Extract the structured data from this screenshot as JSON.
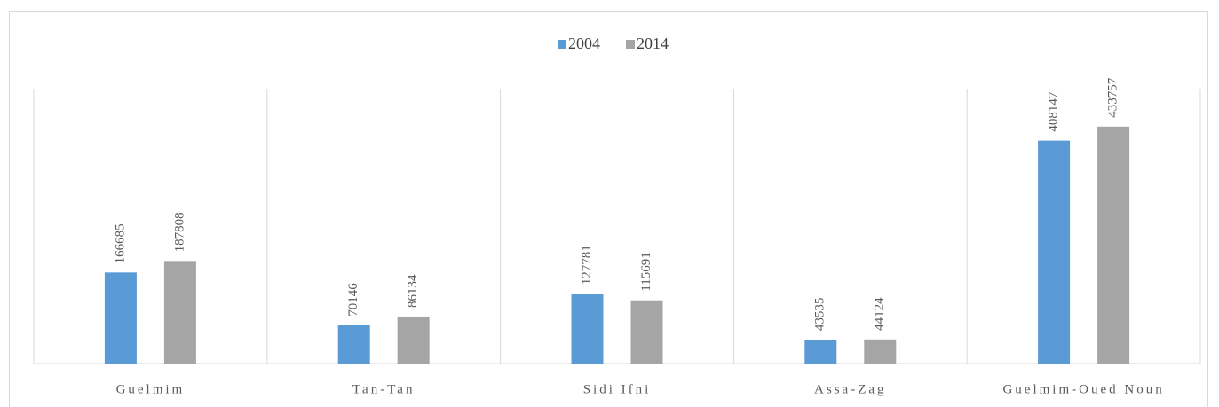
{
  "chart_data": {
    "type": "bar",
    "categories": [
      "Guelmim",
      "Tan-Tan",
      "Sidi Ifni",
      "Assa-Zag",
      "Guelmim-Oued Noun"
    ],
    "series": [
      {
        "name": "2004",
        "color": "#5b9bd5",
        "values": [
          166685,
          70146,
          127781,
          43535,
          408147
        ]
      },
      {
        "name": "2014",
        "color": "#a5a5a5",
        "values": [
          187808,
          86134,
          115691,
          44124,
          433757
        ]
      }
    ],
    "ylim": [
      0,
      500000
    ],
    "legend": "top"
  }
}
